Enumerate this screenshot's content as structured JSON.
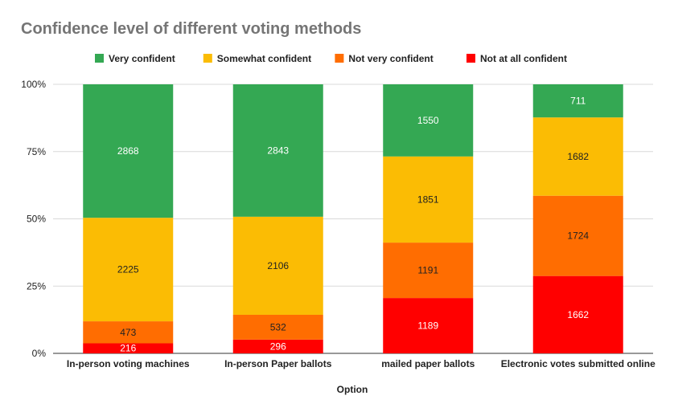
{
  "chart_data": {
    "type": "bar",
    "stacked": true,
    "normalized": "percent",
    "title": "Confidence level of different voting methods",
    "xlabel": "Option",
    "ylabel": "",
    "ylim": [
      0,
      100
    ],
    "yticks": [
      "0%",
      "25%",
      "50%",
      "75%",
      "100%"
    ],
    "legend_position": "top",
    "grid": true,
    "categories": [
      "In-person voting machines",
      "In-person Paper ballots",
      "mailed paper ballots",
      "Electronic votes submitted online"
    ],
    "series": [
      {
        "name": "Very confident",
        "color": "#34a853",
        "label_color": "#ffffff",
        "values": [
          2868,
          2843,
          1550,
          711
        ]
      },
      {
        "name": "Somewhat confident",
        "color": "#fbbc04",
        "label_color": "#222222",
        "values": [
          2225,
          2106,
          1851,
          1682
        ]
      },
      {
        "name": "Not very confident",
        "color": "#ff6d01",
        "label_color": "#222222",
        "values": [
          473,
          532,
          1191,
          1724
        ]
      },
      {
        "name": "Not at all confident",
        "color": "#ff0000",
        "label_color": "#ffffff",
        "values": [
          216,
          296,
          1189,
          1662
        ]
      }
    ]
  }
}
